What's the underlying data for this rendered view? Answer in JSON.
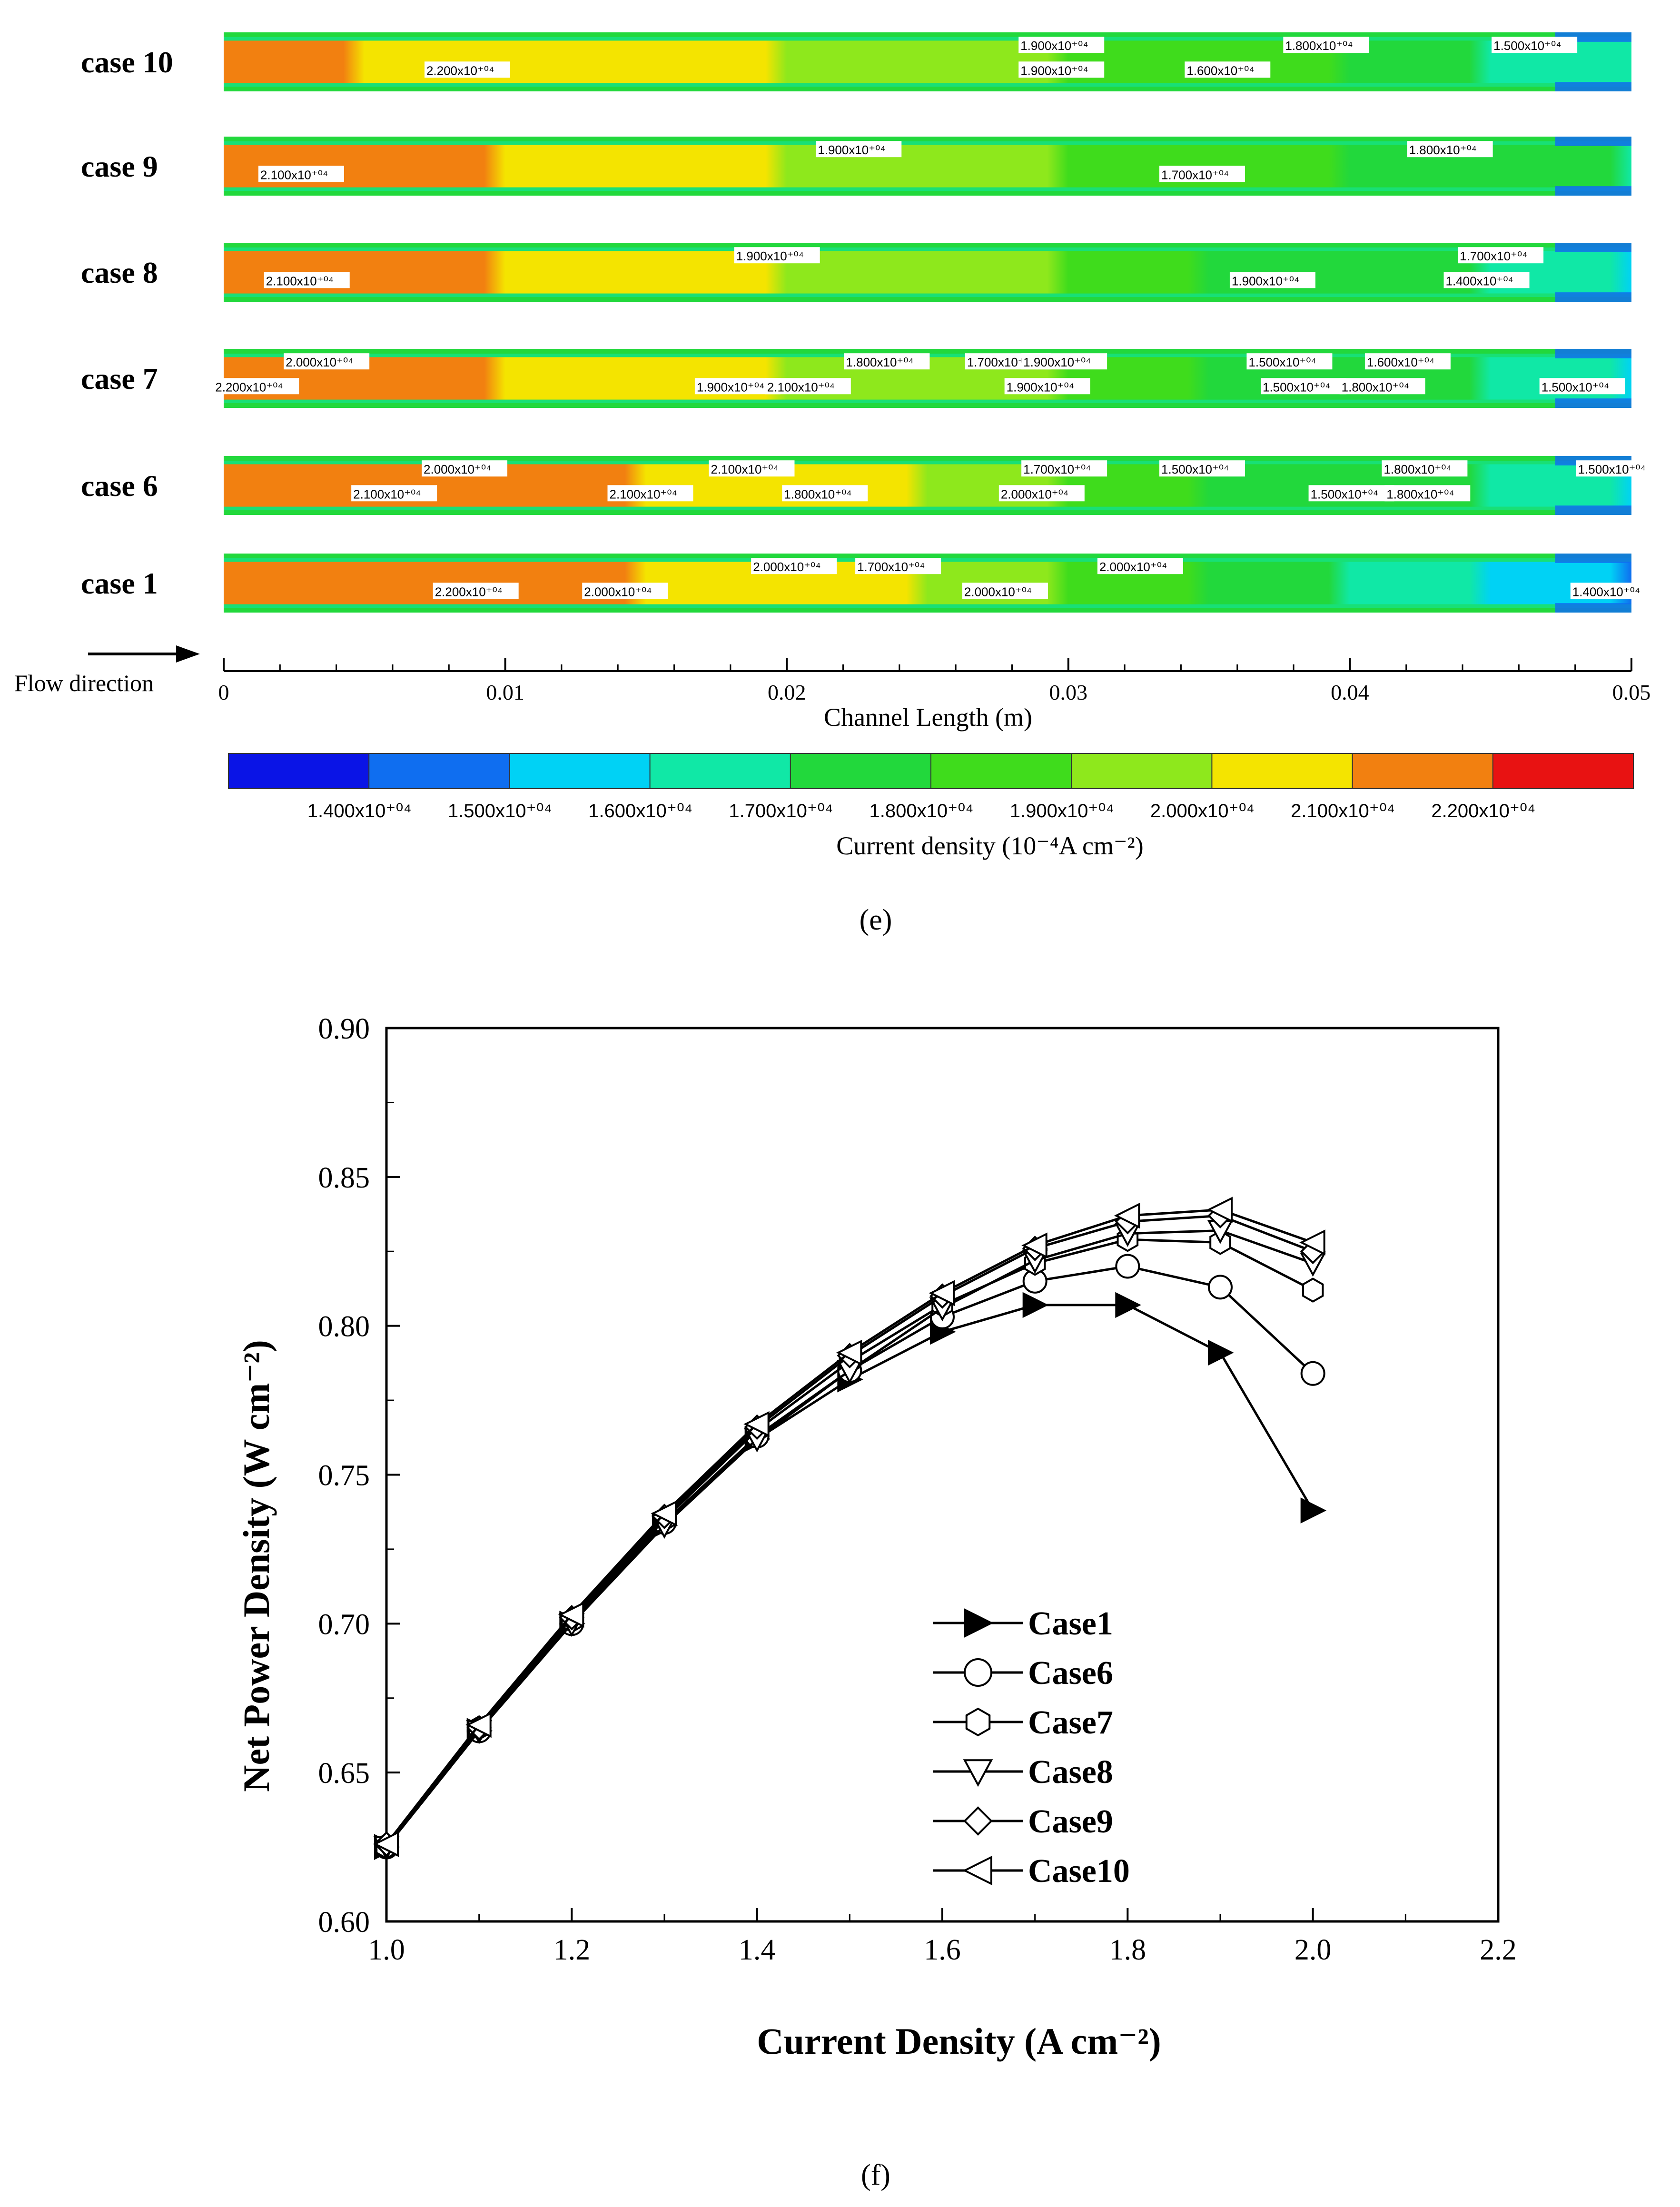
{
  "chart_data": [
    {
      "type": "heatmap",
      "panel_label": "(e)",
      "title": "",
      "xlabel": "Channel Length (m)",
      "x_range": [
        0,
        0.05
      ],
      "x_ticks": [
        "0",
        "0.01",
        "0.02",
        "0.03",
        "0.04",
        "0.05"
      ],
      "flow_label": "Flow direction",
      "colorbar_label": "Current density (10⁻⁴A cm⁻²)",
      "colorbar_ticks": [
        "1.400x10⁺⁰⁴",
        "1.500x10⁺⁰⁴",
        "1.600x10⁺⁰⁴",
        "1.700x10⁺⁰⁴",
        "1.800x10⁺⁰⁴",
        "1.900x10⁺⁰⁴",
        "2.000x10⁺⁰⁴",
        "2.100x10⁺⁰⁴",
        "2.200x10⁺⁰⁴"
      ],
      "colorbar_colors": [
        "#0a14e6",
        "#0f6ef0",
        "#00d2f5",
        "#10e8a6",
        "#22d83c",
        "#3fdc1c",
        "#8ee81c",
        "#f4e400",
        "#f28010",
        "#e81212"
      ],
      "rows": [
        {
          "label": "case 10",
          "profile": [
            21.6,
            21.3,
            21.1,
            20.6,
            20.1,
            19.6,
            19.1,
            18.6,
            18.0,
            17.4,
            16.6
          ],
          "contour_labels": [
            {
              "text": "2.200x10⁺⁰⁴",
              "x": 0.0072
            },
            {
              "text": "1.900x10⁺⁰⁴",
              "x": 0.0283
            },
            {
              "text": "1.600x10⁺⁰⁴",
              "x": 0.0342
            },
            {
              "text": "1.800x10⁺⁰⁴",
              "x": 0.0377
            },
            {
              "text": "1.900x10⁺⁰⁴",
              "x": 0.0283
            },
            {
              "text": "1.500x10⁺⁰⁴",
              "x": 0.0451
            }
          ]
        },
        {
          "label": "case 9",
          "profile": [
            21.8,
            21.6,
            21.2,
            20.8,
            20.2,
            19.6,
            19.0,
            18.5,
            18.0,
            17.5,
            16.8
          ],
          "contour_labels": [
            {
              "text": "2.100x10⁺⁰⁴",
              "x": 0.0013
            },
            {
              "text": "1.900x10⁺⁰⁴",
              "x": 0.0211
            },
            {
              "text": "1.700x10⁺⁰⁴",
              "x": 0.0333
            },
            {
              "text": "1.800x10⁺⁰⁴",
              "x": 0.0421
            }
          ]
        },
        {
          "label": "case 8",
          "profile": [
            21.8,
            21.5,
            21.2,
            20.7,
            20.2,
            19.6,
            19.0,
            18.4,
            17.8,
            17.1,
            16.2
          ],
          "contour_labels": [
            {
              "text": "2.100x10⁺⁰⁴",
              "x": 0.0015
            },
            {
              "text": "1.900x10⁺⁰⁴",
              "x": 0.0182
            },
            {
              "text": "1.900x10⁺⁰⁴",
              "x": 0.0358
            },
            {
              "text": "1.700x10⁺⁰⁴",
              "x": 0.0439
            },
            {
              "text": "1.400x10⁺⁰⁴",
              "x": 0.0434
            }
          ]
        },
        {
          "label": "case 7",
          "profile": [
            21.7,
            21.6,
            21.3,
            20.8,
            20.1,
            19.6,
            19.0,
            18.4,
            17.7,
            16.9,
            15.8
          ],
          "contour_labels": [
            {
              "text": "2.200x10⁺⁰⁴",
              "x": -0.0003
            },
            {
              "text": "2.000x10⁺⁰⁴",
              "x": 0.0022
            },
            {
              "text": "1.900x10⁺⁰⁴",
              "x": 0.0168
            },
            {
              "text": "1.800x10⁺⁰⁴",
              "x": 0.0221
            },
            {
              "text": "2.100x10⁺⁰⁴",
              "x": 0.0193
            },
            {
              "text": "1.700x10⁺⁰⁴",
              "x": 0.0264
            },
            {
              "text": "1.900x10⁺⁰⁴",
              "x": 0.0278
            },
            {
              "text": "1.900x10⁺⁰⁴",
              "x": 0.0284
            },
            {
              "text": "1.500x10⁺⁰⁴",
              "x": 0.0369
            },
            {
              "text": "1.600x10⁺⁰⁴",
              "x": 0.0406
            },
            {
              "text": "1.800x10⁺⁰⁴",
              "x": 0.0397
            },
            {
              "text": "1.500x10⁺⁰⁴",
              "x": 0.0364
            },
            {
              "text": "1.500x10⁺⁰⁴",
              "x": 0.0468
            }
          ]
        },
        {
          "label": "case 6",
          "profile": [
            22.2,
            22.0,
            21.6,
            21.1,
            20.5,
            19.8,
            19.1,
            18.4,
            17.7,
            17.0,
            16.2
          ],
          "contour_labels": [
            {
              "text": "2.100x10⁺⁰⁴",
              "x": 0.0046
            },
            {
              "text": "2.000x10⁺⁰⁴",
              "x": 0.0071
            },
            {
              "text": "2.100x10⁺⁰⁴",
              "x": 0.0137
            },
            {
              "text": "2.100x10⁺⁰⁴",
              "x": 0.0173
            },
            {
              "text": "1.800x10⁺⁰⁴",
              "x": 0.0199
            },
            {
              "text": "1.700x10⁺⁰⁴",
              "x": 0.0284
            },
            {
              "text": "2.000x10⁺⁰⁴",
              "x": 0.0276
            },
            {
              "text": "1.500x10⁺⁰⁴",
              "x": 0.0333
            },
            {
              "text": "1.500x10⁺⁰⁴",
              "x": 0.0386
            },
            {
              "text": "1.800x10⁺⁰⁴",
              "x": 0.0412
            },
            {
              "text": "1.800x10⁺⁰⁴",
              "x": 0.0413
            },
            {
              "text": "1.500x10⁺⁰⁴",
              "x": 0.0481
            }
          ]
        },
        {
          "label": "case 1",
          "profile": [
            22.3,
            22.1,
            21.8,
            21.3,
            20.6,
            19.9,
            19.1,
            18.3,
            17.4,
            16.3,
            15.0
          ],
          "contour_labels": [
            {
              "text": "2.200x10⁺⁰⁴",
              "x": 0.0075
            },
            {
              "text": "1.700x10⁺⁰⁴",
              "x": 0.0225
            },
            {
              "text": "2.000x10⁺⁰⁴",
              "x": 0.0128
            },
            {
              "text": "2.000x10⁺⁰⁴",
              "x": 0.0188
            },
            {
              "text": "2.000x10⁺⁰⁴",
              "x": 0.0263
            },
            {
              "text": "2.000x10⁺⁰⁴",
              "x": 0.0311
            },
            {
              "text": "1.400x10⁺⁰⁴",
              "x": 0.0479
            }
          ]
        }
      ]
    },
    {
      "type": "line",
      "panel_label": "(f)",
      "title": "",
      "xlabel": "Current Density (A cm⁻²)",
      "ylabel": "Net Power Density (W cm⁻²)",
      "xlim": [
        1.0,
        2.2
      ],
      "ylim": [
        0.6,
        0.9
      ],
      "x_ticks": [
        "1.0",
        "1.2",
        "1.4",
        "1.6",
        "1.8",
        "2.0",
        "2.2"
      ],
      "y_ticks": [
        "0.60",
        "0.65",
        "0.70",
        "0.75",
        "0.80",
        "0.85",
        "0.90"
      ],
      "legend_position": "lower-right",
      "x": [
        1.0,
        1.1,
        1.2,
        1.3,
        1.4,
        1.5,
        1.6,
        1.7,
        1.8,
        1.9,
        2.0
      ],
      "series": [
        {
          "name": "Case1",
          "marker": "triangle-right-filled",
          "values": [
            0.625,
            0.664,
            0.7,
            0.733,
            0.762,
            0.782,
            0.798,
            0.807,
            0.807,
            0.791,
            0.738
          ]
        },
        {
          "name": "Case6",
          "marker": "circle",
          "values": [
            0.625,
            0.664,
            0.7,
            0.734,
            0.763,
            0.785,
            0.803,
            0.815,
            0.82,
            0.813,
            0.784
          ]
        },
        {
          "name": "Case7",
          "marker": "hexagon",
          "values": [
            0.625,
            0.665,
            0.701,
            0.735,
            0.765,
            0.788,
            0.807,
            0.821,
            0.829,
            0.828,
            0.812
          ]
        },
        {
          "name": "Case8",
          "marker": "triangle-down",
          "values": [
            0.625,
            0.664,
            0.7,
            0.733,
            0.762,
            0.785,
            0.806,
            0.822,
            0.831,
            0.832,
            0.821
          ]
        },
        {
          "name": "Case9",
          "marker": "diamond",
          "values": [
            0.626,
            0.665,
            0.702,
            0.736,
            0.766,
            0.79,
            0.81,
            0.826,
            0.835,
            0.837,
            0.825
          ]
        },
        {
          "name": "Case10",
          "marker": "triangle-left",
          "values": [
            0.626,
            0.666,
            0.703,
            0.737,
            0.767,
            0.791,
            0.811,
            0.827,
            0.837,
            0.839,
            0.828
          ]
        }
      ]
    }
  ]
}
